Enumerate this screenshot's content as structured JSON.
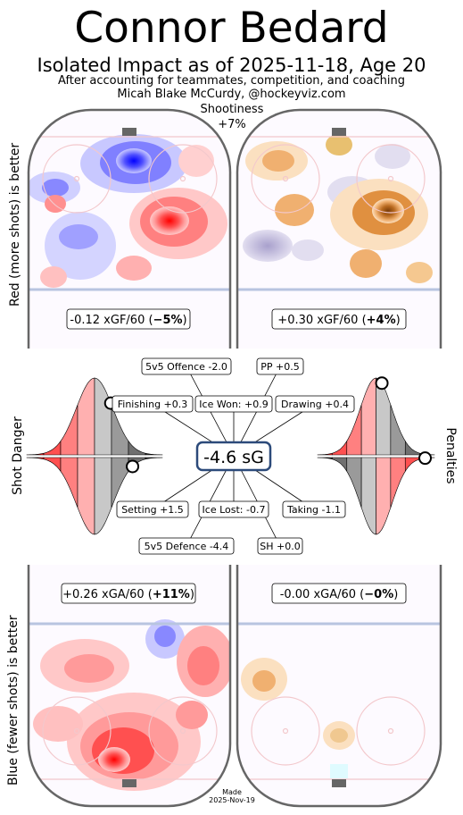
{
  "header": {
    "title": "Connor Bedard",
    "subtitle": "Isolated Impact as of 2025-11-18, Age 20",
    "note_line1": "After accounting for teammates, competition, and coaching",
    "note_line2": "Micah Blake McCurdy, @hockeyviz.com",
    "shootiness_label": "Shootiness",
    "shootiness_value": "+7%"
  },
  "side_labels": {
    "top_left": "Red (more shots) is better",
    "bottom_left": "Blue (fewer shots) is better",
    "mid_left": "Shot Danger",
    "mid_right": "Penalties"
  },
  "footer": {
    "made_line1": "Made",
    "made_line2": "2025-Nov-19"
  },
  "colors": {
    "rink_border": "#666666",
    "red_strong": "#ff0000",
    "blue_strong": "#0000ff",
    "orange_strong": "#7a3d08",
    "center_box_border": "#2c4a7a"
  },
  "chart_data": {
    "type": "table",
    "total": {
      "label": "-4.6 sG",
      "value": -4.6
    },
    "components": [
      {
        "name": "5v5 Offence",
        "value": -2.0,
        "label": "5v5 Offence -2.0"
      },
      {
        "name": "PP",
        "value": 0.5,
        "label": "PP +0.5"
      },
      {
        "name": "Finishing",
        "value": 0.3,
        "label": "Finishing +0.3"
      },
      {
        "name": "Ice Won",
        "value": 0.9,
        "label": "Ice Won: +0.9"
      },
      {
        "name": "Drawing",
        "value": 0.4,
        "label": "Drawing +0.4"
      },
      {
        "name": "Setting",
        "value": 1.5,
        "label": "Setting +1.5"
      },
      {
        "name": "Ice Lost",
        "value": -0.7,
        "label": "Ice Lost: -0.7"
      },
      {
        "name": "Taking",
        "value": -1.1,
        "label": "Taking -1.1"
      },
      {
        "name": "5v5 Defence",
        "value": -4.4,
        "label": "5v5 Defence -4.4"
      },
      {
        "name": "SH",
        "value": 0.0,
        "label": "SH +0.0"
      }
    ],
    "rink_panels": [
      {
        "name": "5v5 offence",
        "metric": "xGF/60",
        "value": -0.12,
        "pct": "−5%",
        "text_pre": "-0.12 xGF/60 (",
        "text_post": ")"
      },
      {
        "name": "PP offence",
        "metric": "xGF/60",
        "value": 0.3,
        "pct": "+4%",
        "text_pre": "+0.30 xGF/60 (",
        "text_post": ")"
      },
      {
        "name": "5v5 defence",
        "metric": "xGA/60",
        "value": 0.26,
        "pct": "+11%",
        "text_pre": "+0.26 xGA/60 (",
        "text_post": ")"
      },
      {
        "name": "SH defence",
        "metric": "xGA/60",
        "value": -0.0,
        "pct": "−0%",
        "text_pre": "-0.00 xGA/60 (",
        "text_post": ")"
      }
    ],
    "distributions": [
      {
        "name": "Shot Danger offence",
        "marker_percentile": 0.62
      },
      {
        "name": "Shot Danger defence",
        "marker_percentile": 0.78
      },
      {
        "name": "Penalties drawing",
        "marker_percentile": 0.55
      },
      {
        "name": "Penalties taking",
        "marker_percentile": 0.08
      }
    ]
  }
}
